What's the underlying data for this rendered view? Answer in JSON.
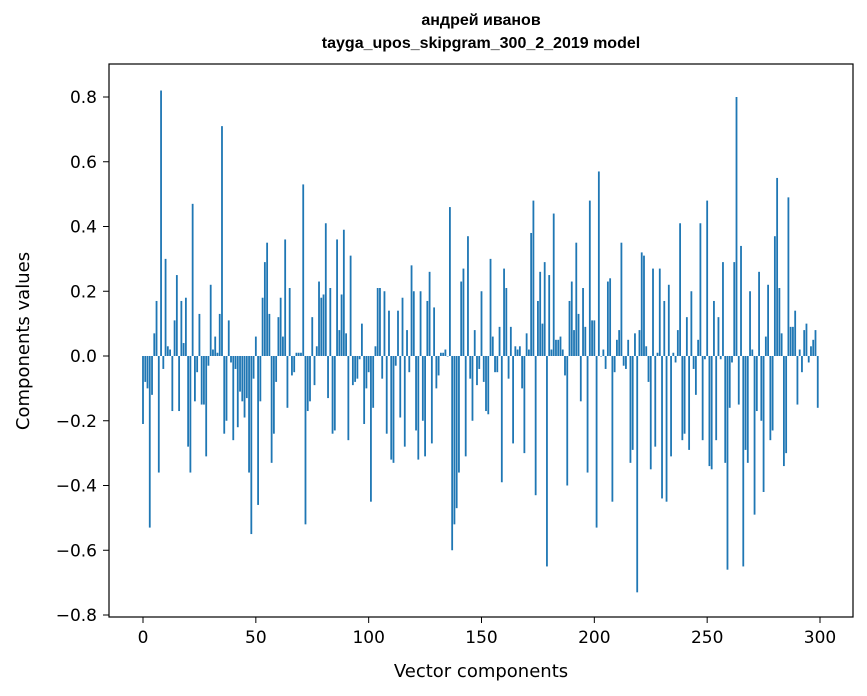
{
  "chart_data": {
    "type": "bar",
    "title": "андрей иванов",
    "subtitle": "tayga_upos_skipgram_300_2_2019 model",
    "xlabel": "Vector components",
    "ylabel": "Components values",
    "xlim": [
      -15,
      315
    ],
    "ylim": [
      -0.81,
      0.9
    ],
    "xticks": [
      0,
      50,
      100,
      150,
      200,
      250,
      300
    ],
    "yticks": [
      -0.8,
      -0.6,
      -0.4,
      -0.2,
      0.0,
      0.2,
      0.4,
      0.6,
      0.8
    ],
    "ytick_labels": [
      "−0.8",
      "−0.6",
      "−0.4",
      "−0.2",
      "0.0",
      "0.2",
      "0.4",
      "0.6",
      "0.8"
    ],
    "xtick_labels": [
      "0",
      "50",
      "100",
      "150",
      "200",
      "250",
      "300"
    ],
    "grid": false,
    "bar_color": "#1f77b4",
    "values": [
      -0.21,
      -0.08,
      -0.1,
      -0.53,
      -0.12,
      0.07,
      0.17,
      -0.36,
      0.82,
      -0.04,
      0.3,
      0.03,
      0.02,
      -0.17,
      0.11,
      0.25,
      -0.17,
      0.17,
      0.04,
      0.18,
      -0.28,
      -0.36,
      0.47,
      -0.14,
      -0.05,
      0.13,
      -0.15,
      -0.15,
      -0.31,
      -0.03,
      0.22,
      0.02,
      0.06,
      0.01,
      0.13,
      0.71,
      -0.24,
      -0.2,
      0.11,
      -0.02,
      -0.26,
      -0.04,
      -0.22,
      -0.11,
      -0.14,
      -0.19,
      -0.13,
      -0.36,
      -0.55,
      -0.07,
      0.06,
      -0.46,
      -0.14,
      0.18,
      0.29,
      0.35,
      0.13,
      -0.33,
      -0.24,
      -0.08,
      0.12,
      0.18,
      0.06,
      0.36,
      -0.16,
      0.21,
      -0.06,
      -0.05,
      0.01,
      0.01,
      0.01,
      0.53,
      -0.52,
      -0.17,
      -0.14,
      0.12,
      -0.09,
      0.03,
      0.23,
      0.18,
      0.19,
      0.41,
      -0.13,
      0.21,
      -0.24,
      -0.23,
      0.36,
      0.08,
      0.19,
      0.39,
      0.07,
      -0.26,
      0.31,
      -0.09,
      -0.08,
      -0.07,
      -0.01,
      0.1,
      -0.21,
      -0.1,
      -0.05,
      -0.45,
      -0.16,
      0.03,
      0.21,
      0.21,
      -0.07,
      0.2,
      -0.24,
      0.14,
      -0.32,
      -0.33,
      -0.03,
      0.14,
      -0.19,
      0.18,
      -0.28,
      0.08,
      -0.05,
      0.28,
      0.2,
      -0.23,
      -0.32,
      0.2,
      -0.2,
      -0.31,
      0.17,
      0.26,
      -0.27,
      0.15,
      -0.1,
      -0.06,
      0.01,
      0.01,
      0.02,
      0.0,
      0.46,
      -0.6,
      -0.52,
      -0.47,
      -0.36,
      0.23,
      0.27,
      -0.31,
      0.37,
      -0.07,
      -0.2,
      0.08,
      -0.09,
      -0.04,
      0.2,
      -0.08,
      -0.17,
      -0.18,
      0.3,
      0.06,
      -0.05,
      -0.05,
      0.09,
      -0.39,
      0.27,
      0.21,
      -0.07,
      0.09,
      -0.27,
      0.03,
      0.02,
      0.03,
      -0.1,
      -0.3,
      0.07,
      0.02,
      0.38,
      0.48,
      -0.43,
      0.17,
      0.26,
      0.1,
      0.29,
      -0.65,
      0.25,
      0.02,
      0.44,
      0.05,
      0.05,
      0.06,
      0.02,
      -0.06,
      -0.4,
      0.17,
      0.23,
      0.08,
      0.35,
      0.13,
      -0.14,
      0.21,
      0.09,
      -0.36,
      0.48,
      0.11,
      0.11,
      -0.53,
      0.57,
      0.0,
      0.02,
      -0.04,
      0.23,
      0.24,
      -0.45,
      -0.05,
      0.05,
      0.08,
      0.35,
      -0.03,
      -0.04,
      0.05,
      -0.33,
      -0.29,
      0.07,
      -0.73,
      0.08,
      0.32,
      0.31,
      0.03,
      -0.08,
      -0.35,
      0.27,
      -0.28,
      0.01,
      0.27,
      -0.44,
      0.17,
      -0.45,
      0.22,
      -0.31,
      0.01,
      -0.02,
      0.08,
      0.41,
      -0.26,
      -0.24,
      0.12,
      -0.29,
      0.2,
      -0.04,
      -0.12,
      0.05,
      0.41,
      -0.26,
      -0.01,
      0.48,
      -0.34,
      -0.35,
      0.17,
      -0.26,
      0.12,
      -0.01,
      0.29,
      -0.33,
      -0.66,
      -0.16,
      -0.02,
      0.29,
      0.8,
      -0.15,
      0.34,
      -0.65,
      -0.29,
      -0.33,
      0.2,
      0.02,
      -0.49,
      -0.17,
      0.26,
      -0.2,
      -0.42,
      0.06,
      0.22,
      -0.26,
      -0.23,
      0.37,
      0.55,
      0.21,
      0.07,
      -0.34,
      -0.3,
      0.49,
      0.09,
      0.09,
      0.14,
      -0.15,
      0.02,
      -0.05,
      0.08,
      0.1,
      -0.02,
      0.03,
      0.05,
      0.08,
      -0.16
    ]
  }
}
